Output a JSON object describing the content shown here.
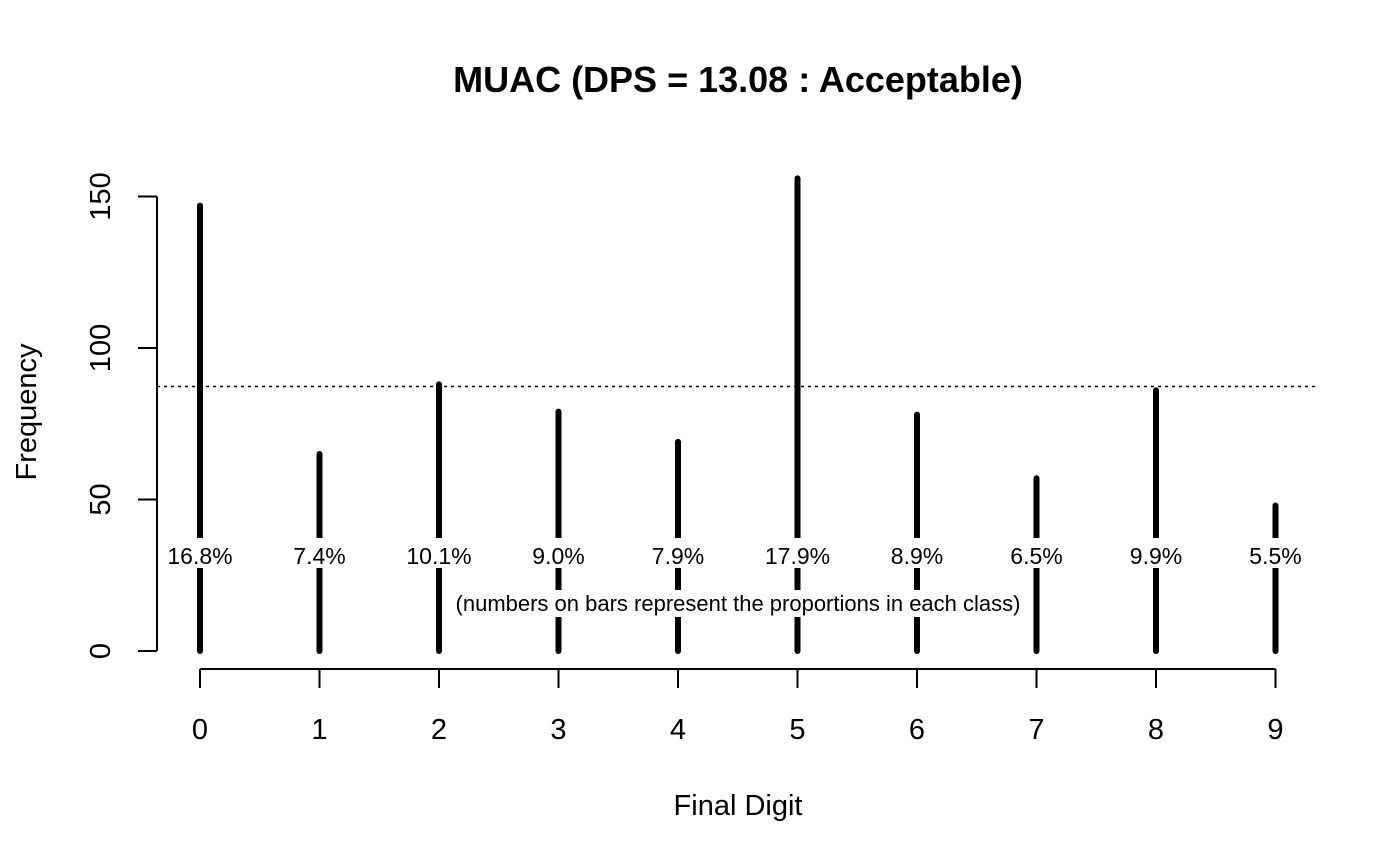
{
  "chart_data": {
    "type": "bar",
    "title": "MUAC (DPS = 13.08 : Acceptable)",
    "xlabel": "Final Digit",
    "ylabel": "Frequency",
    "categories": [
      "0",
      "1",
      "2",
      "3",
      "4",
      "5",
      "6",
      "7",
      "8",
      "9"
    ],
    "values": [
      147,
      65,
      88,
      79,
      69,
      156,
      78,
      57,
      86,
      48
    ],
    "bar_labels": [
      "16.8%",
      "7.4%",
      "10.1%",
      "9.0%",
      "7.9%",
      "17.9%",
      "8.9%",
      "6.5%",
      "9.9%",
      "5.5%"
    ],
    "y_ticks": [
      0,
      50,
      100,
      150
    ],
    "ylim": [
      0,
      156
    ],
    "reference_line": 87.3,
    "annotation": "(numbers on bars represent the proportions in each class)",
    "grid": false,
    "legend": "none",
    "colors": {
      "bars": "#000000",
      "axes": "#000000",
      "background": "#ffffff"
    }
  }
}
